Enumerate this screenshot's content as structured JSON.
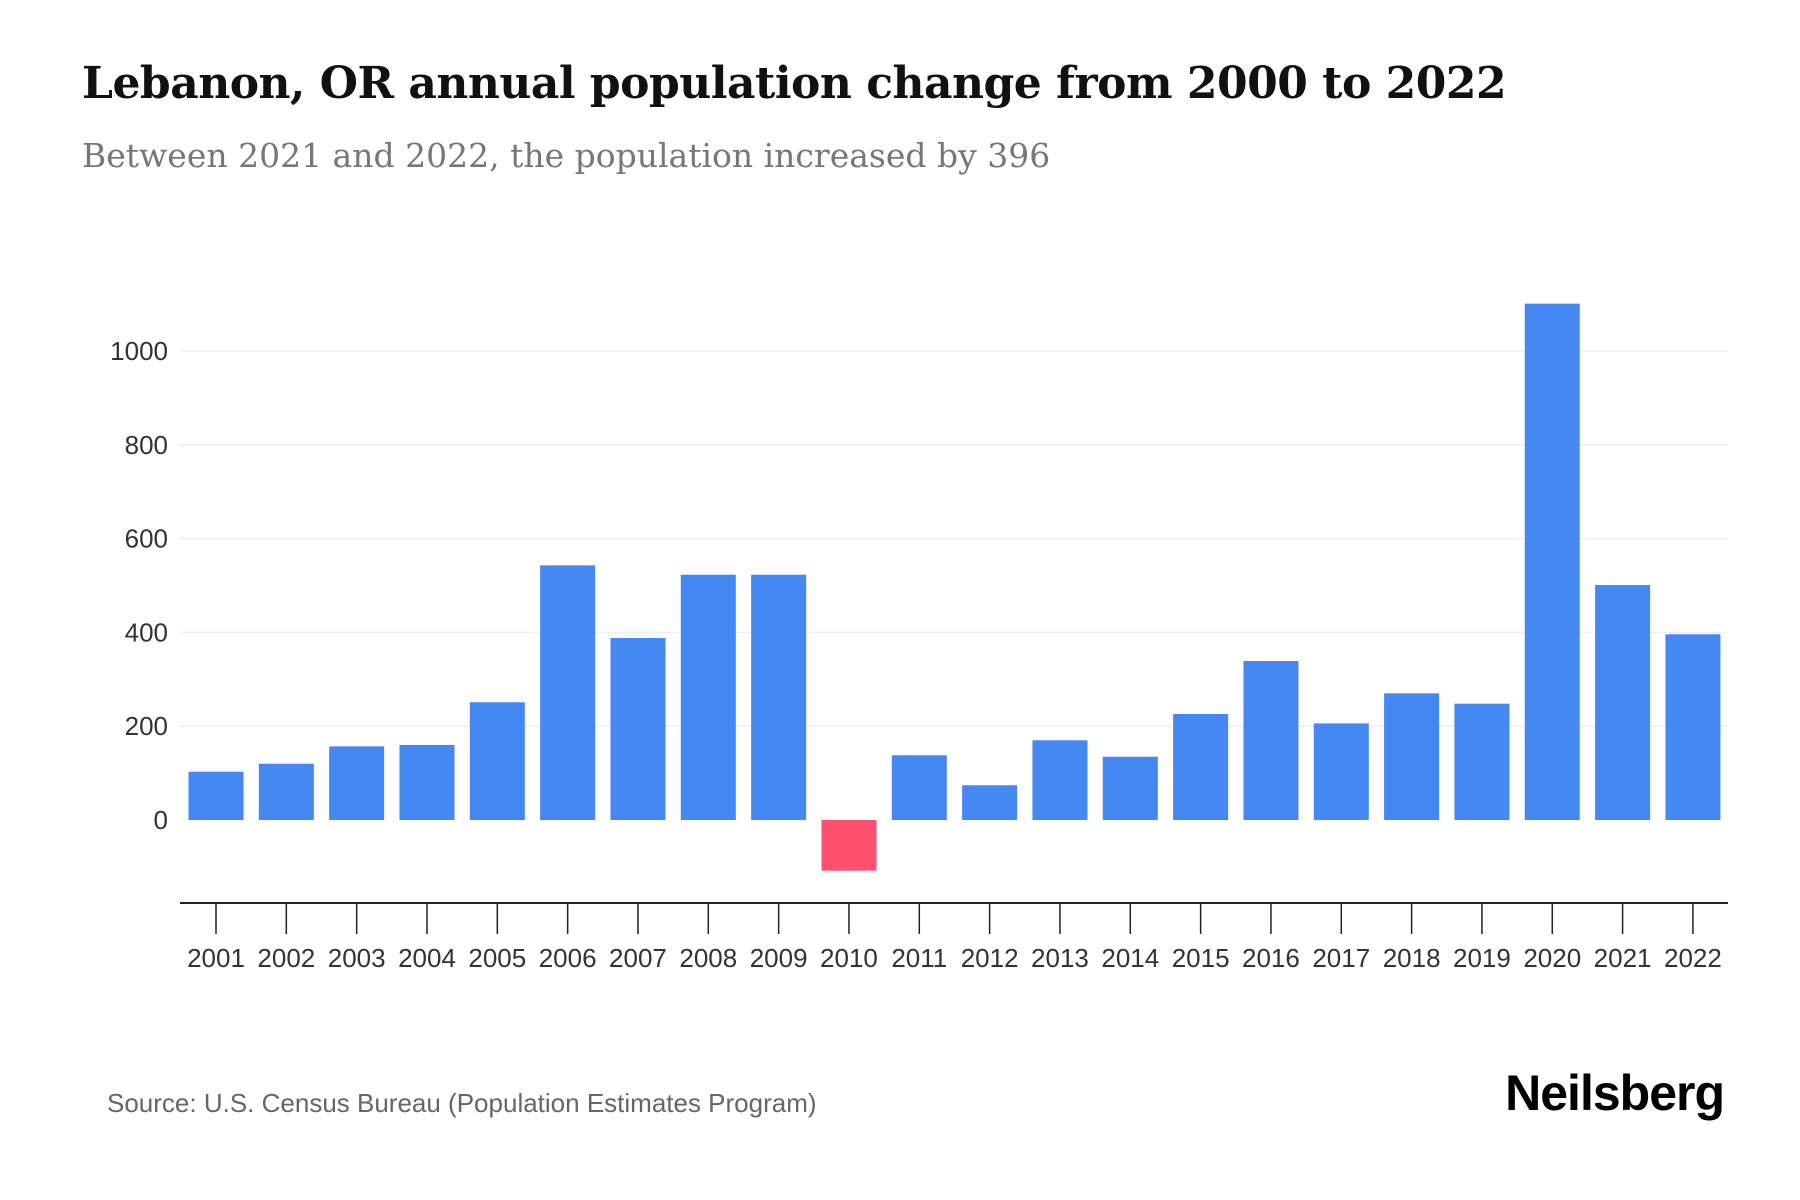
{
  "header": {
    "title": "Lebanon, OR annual population change from 2000 to 2022",
    "subtitle": "Between 2021 and 2022, the population increased by 396"
  },
  "footer": {
    "source": "Source: U.S. Census Bureau (Population Estimates Program)",
    "brand": "Neilsberg"
  },
  "colors": {
    "positive": "#4688f1",
    "negative": "#ff4f6e",
    "grid": "#eeeeee",
    "axis": "#222222"
  },
  "chart_data": {
    "type": "bar",
    "title": "Lebanon, OR annual population change from 2000 to 2022",
    "subtitle": "Between 2021 and 2022, the population increased by 396",
    "xlabel": "",
    "ylabel": "",
    "categories": [
      "2001",
      "2002",
      "2003",
      "2004",
      "2005",
      "2006",
      "2007",
      "2008",
      "2009",
      "2010",
      "2011",
      "2012",
      "2013",
      "2014",
      "2015",
      "2016",
      "2017",
      "2018",
      "2019",
      "2020",
      "2021",
      "2022"
    ],
    "values": [
      103,
      120,
      157,
      160,
      251,
      543,
      388,
      523,
      523,
      -108,
      138,
      74,
      170,
      135,
      226,
      339,
      206,
      270,
      248,
      1101,
      501,
      396
    ],
    "yticks": [
      0,
      200,
      400,
      600,
      800,
      1000
    ],
    "ylim": [
      -180,
      1150
    ],
    "grid": true,
    "legend": "none"
  }
}
